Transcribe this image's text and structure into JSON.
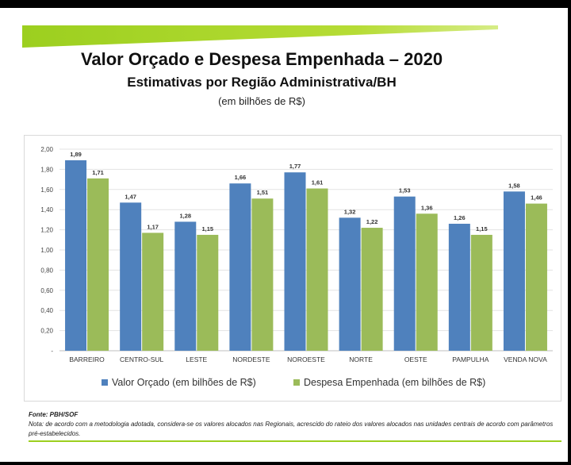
{
  "slide": {
    "title": "Valor Orçado e Despesa Empenhada – 2020",
    "subtitle": "Estimativas por Região Administrativa/BH",
    "unit_note": "(em bilhões de R$)",
    "source": "Fonte: PBH/SOF",
    "note": "Nota: de acordo com a metodologia adotada, considera-se os valores alocados nas Regionais, acrescido do rateio dos valores alocados nas unidades centrais de acordo com parâmetros pré-estabelecidos.",
    "accent_color": "#9ccf1f"
  },
  "chart_data": {
    "type": "bar",
    "title": "",
    "xlabel": "",
    "ylabel": "",
    "categories": [
      "BARREIRO",
      "CENTRO-SUL",
      "LESTE",
      "NORDESTE",
      "NOROESTE",
      "NORTE",
      "OESTE",
      "PAMPULHA",
      "VENDA NOVA"
    ],
    "series": [
      {
        "name": "Valor Orçado (em bilhões de R$)",
        "values": [
          1.89,
          1.47,
          1.28,
          1.66,
          1.77,
          1.32,
          1.53,
          1.26,
          1.58
        ],
        "labels": [
          "1,89",
          "1,47",
          "1,28",
          "1,66",
          "1,77",
          "1,32",
          "1,53",
          "1,26",
          "1,58"
        ],
        "color": "#4f81bd"
      },
      {
        "name": "Despesa Empenhada (em bilhões de R$)",
        "values": [
          1.71,
          1.17,
          1.15,
          1.51,
          1.61,
          1.22,
          1.36,
          1.15,
          1.46
        ],
        "labels": [
          "1,71",
          "1,17",
          "1,15",
          "1,51",
          "1,61",
          "1,22",
          "1,36",
          "1,15",
          "1,46"
        ],
        "color": "#9bbb59"
      }
    ],
    "ylim": [
      0,
      2.0
    ],
    "yticks": [
      0,
      0.2,
      0.4,
      0.6,
      0.8,
      1.0,
      1.2,
      1.4,
      1.6,
      1.8,
      2.0
    ],
    "ytick_labels": [
      "-",
      "0,20",
      "0,40",
      "0,60",
      "0,80",
      "1,00",
      "1,20",
      "1,40",
      "1,60",
      "1,80",
      "2,00"
    ],
    "grid": true,
    "legend_position": "bottom"
  }
}
